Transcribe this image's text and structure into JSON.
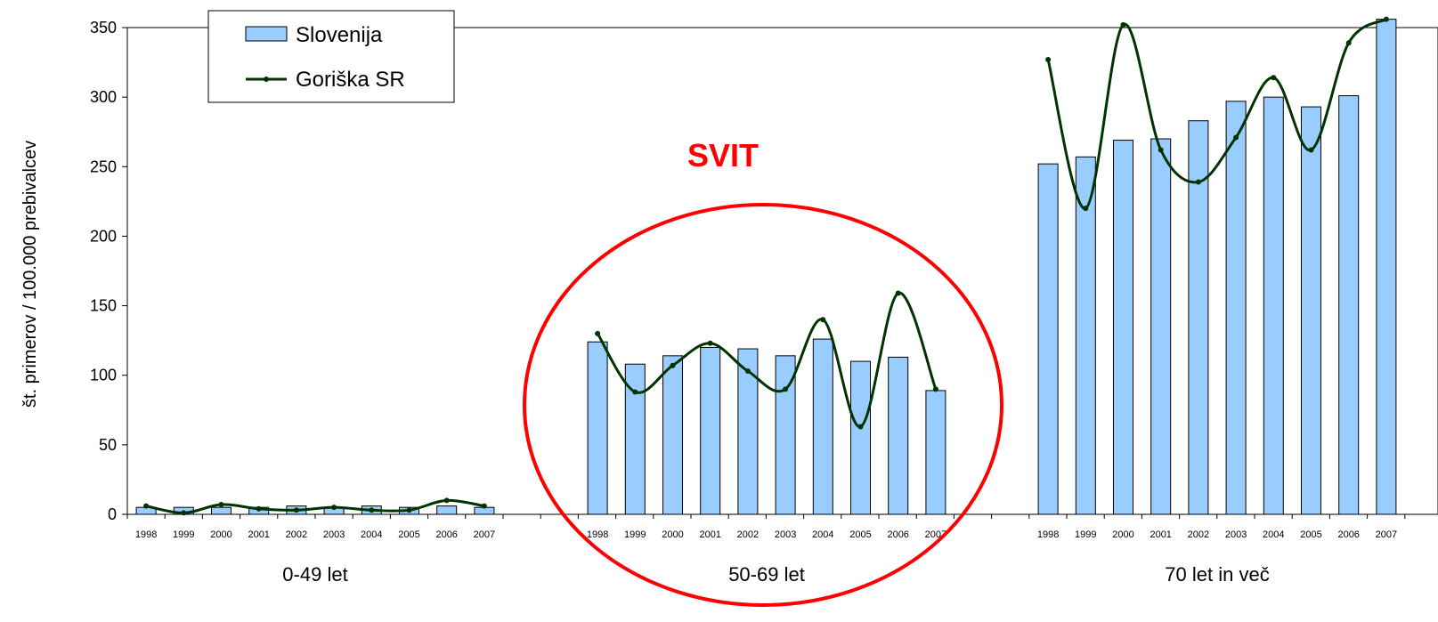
{
  "chart_data": {
    "type": "bar",
    "ylabel": "št. primerov / 100.000 prebivalcev",
    "ylim": [
      0,
      350
    ],
    "yticks": [
      0,
      50,
      100,
      150,
      200,
      250,
      300,
      350
    ],
    "grid": false,
    "legend_position": "top-left",
    "years": [
      "1998",
      "1999",
      "2000",
      "2001",
      "2002",
      "2003",
      "2004",
      "2005",
      "2006",
      "2007"
    ],
    "groups": [
      {
        "label": "0-49 let",
        "slovenija": [
          5,
          5,
          5,
          5,
          6,
          5,
          6,
          5,
          6,
          5
        ],
        "goriska": [
          6,
          1,
          7,
          4,
          3,
          5,
          3,
          3,
          10,
          6
        ]
      },
      {
        "label": "50-69 let",
        "slovenija": [
          124,
          108,
          114,
          120,
          119,
          114,
          126,
          110,
          113,
          89
        ],
        "goriska": [
          130,
          88,
          107,
          123,
          103,
          90,
          140,
          63,
          159,
          90
        ]
      },
      {
        "label": "70 let in več",
        "slovenija": [
          252,
          257,
          269,
          270,
          283,
          297,
          300,
          293,
          301,
          356
        ],
        "goriska": [
          327,
          220,
          352,
          262,
          239,
          271,
          314,
          262,
          339,
          356
        ]
      }
    ],
    "series": [
      {
        "name": "Slovenija",
        "type": "bar",
        "color": "#99ccff"
      },
      {
        "name": "Goriška SR",
        "type": "line",
        "color": "#003300"
      }
    ],
    "annotations": [
      {
        "text": "SVIT",
        "color": "#ff0000",
        "target": "50-69 let"
      }
    ]
  }
}
